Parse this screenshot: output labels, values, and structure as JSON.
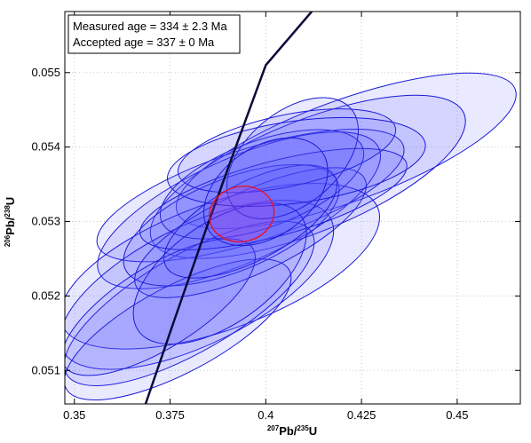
{
  "chart_data": {
    "type": "scatter",
    "title": "",
    "xlabel": {
      "sup1": "207",
      "main1": "Pb/",
      "sup2": "235",
      "main2": "U"
    },
    "ylabel": {
      "sup1": "206",
      "main1": "Pb/",
      "sup2": "238",
      "main2": "U"
    },
    "xlim": [
      0.3475,
      0.4665
    ],
    "ylim": [
      0.05055,
      0.05582
    ],
    "x_ticks": [
      0.35,
      0.375,
      0.4,
      0.425,
      0.45
    ],
    "x_tick_labels": [
      "0.35",
      "0.375",
      "0.4",
      "0.425",
      "0.45"
    ],
    "y_ticks": [
      0.051,
      0.052,
      0.053,
      0.054,
      0.055
    ],
    "y_tick_labels": [
      "0.051",
      "0.052",
      "0.053",
      "0.054",
      "0.055"
    ],
    "grid": true,
    "legend_position": "top-left",
    "annotations": [
      "Measured age = 334 ± 2.3 Ma",
      "Accepted age = 337 ± 0 Ma"
    ],
    "concordia": {
      "color": "#0b0b3a",
      "points": [
        {
          "x": 0.3686,
          "y": 0.05055
        },
        {
          "x": 0.376,
          "y": 0.05166
        },
        {
          "x": 0.384,
          "y": 0.05284
        },
        {
          "x": 0.392,
          "y": 0.05398
        },
        {
          "x": 0.4,
          "y": 0.0551
        },
        {
          "x": 0.412,
          "y": 0.05582
        }
      ]
    },
    "ellipses_style": {
      "fill": "#5858ff",
      "fill_opacity": 0.13,
      "stroke": "#1a1ad6"
    },
    "ellipses": [
      {
        "cx": 0.421,
        "cy": 0.05395,
        "rx": 0.047,
        "ry": 0.00068,
        "angle": 20
      },
      {
        "cx": 0.411,
        "cy": 0.0536,
        "rx": 0.044,
        "ry": 0.00075,
        "angle": 22
      },
      {
        "cx": 0.396,
        "cy": 0.05335,
        "rx": 0.042,
        "ry": 0.00062,
        "angle": 18
      },
      {
        "cx": 0.393,
        "cy": 0.05315,
        "rx": 0.04,
        "ry": 0.0007,
        "angle": 24
      },
      {
        "cx": 0.388,
        "cy": 0.0524,
        "rx": 0.044,
        "ry": 0.00085,
        "angle": 20
      },
      {
        "cx": 0.382,
        "cy": 0.05215,
        "rx": 0.039,
        "ry": 0.0008,
        "angle": 26
      },
      {
        "cx": 0.38,
        "cy": 0.0519,
        "rx": 0.037,
        "ry": 0.00065,
        "angle": 30
      },
      {
        "cx": 0.377,
        "cy": 0.05155,
        "rx": 0.033,
        "ry": 0.00058,
        "angle": 28
      },
      {
        "cx": 0.391,
        "cy": 0.05295,
        "rx": 0.03,
        "ry": 0.00062,
        "angle": 22
      },
      {
        "cx": 0.396,
        "cy": 0.05285,
        "rx": 0.033,
        "ry": 0.00055,
        "angle": 25
      },
      {
        "cx": 0.372,
        "cy": 0.05185,
        "rx": 0.029,
        "ry": 0.00055,
        "angle": 32
      },
      {
        "cx": 0.399,
        "cy": 0.0535,
        "rx": 0.028,
        "ry": 0.00058,
        "angle": 20
      },
      {
        "cx": 0.402,
        "cy": 0.0533,
        "rx": 0.036,
        "ry": 0.0005,
        "angle": 15
      },
      {
        "cx": 0.396,
        "cy": 0.053,
        "rx": 0.025,
        "ry": 0.00052,
        "angle": 28
      },
      {
        "cx": 0.4055,
        "cy": 0.05395,
        "rx": 0.029,
        "ry": 0.00048,
        "angle": 12
      },
      {
        "cx": 0.388,
        "cy": 0.0523,
        "rx": 0.026,
        "ry": 0.00068,
        "angle": 35
      },
      {
        "cx": 0.407,
        "cy": 0.05385,
        "rx": 0.02,
        "ry": 0.00062,
        "angle": 40
      },
      {
        "cx": 0.408,
        "cy": 0.0538,
        "rx": 0.034,
        "ry": 0.00055,
        "angle": 8
      },
      {
        "cx": 0.4,
        "cy": 0.0534,
        "rx": 0.018,
        "ry": 0.0006,
        "angle": 35
      }
    ],
    "mean_ellipse": {
      "cx": 0.3937,
      "cy": 0.0531,
      "rx": 0.0085,
      "ry": 0.00037,
      "angle": 12,
      "stroke": "#e8101e",
      "fill": "#b73ad6",
      "fill_opacity": 0.25
    }
  }
}
